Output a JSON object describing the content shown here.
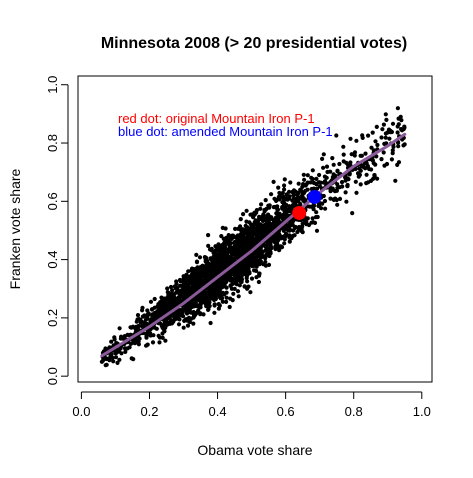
{
  "chart_data": {
    "type": "scatter",
    "title": "Minnesota 2008 (> 20 presidential votes)",
    "xlabel": "Obama vote share",
    "ylabel": "Franken vote share",
    "xlim": [
      -0.01,
      1.03
    ],
    "ylim": [
      -0.02,
      1.03
    ],
    "xticks": [
      "0.0",
      "0.2",
      "0.4",
      "0.6",
      "0.8",
      "1.0"
    ],
    "yticks": [
      "0.0",
      "0.2",
      "0.4",
      "0.6",
      "0.8",
      "1.0"
    ],
    "xtick_values": [
      0,
      0.2,
      0.4,
      0.6,
      0.8,
      1.0
    ],
    "ytick_values": [
      0,
      0.2,
      0.4,
      0.6,
      0.8,
      1.0
    ],
    "grid": false,
    "legend": "top-left",
    "annotations": [
      {
        "text": "red dot: original Mountain Iron P-1",
        "color": "#ff0000"
      },
      {
        "text": "blue dot: amended Mountain Iron P-1",
        "color": "#0000ff"
      }
    ],
    "series": [
      {
        "type": "scatter",
        "color": "#000000",
        "points_description": "approx. 4000 precincts along y ≈ x band",
        "band": {
          "x_range": [
            0.06,
            0.95
          ],
          "center": [
            [
              0.06,
              0.06
            ],
            [
              0.2,
              0.18
            ],
            [
              0.35,
              0.31
            ],
            [
              0.5,
              0.44
            ],
            [
              0.65,
              0.59
            ],
            [
              0.8,
              0.71
            ],
            [
              0.95,
              0.85
            ]
          ],
          "spread_sd": 0.035
        }
      },
      {
        "type": "line",
        "name": "smooth",
        "color": "#8b5a9b",
        "values": [
          [
            0.06,
            0.07
          ],
          [
            0.2,
            0.17
          ],
          [
            0.3,
            0.25
          ],
          [
            0.4,
            0.34
          ],
          [
            0.5,
            0.43
          ],
          [
            0.6,
            0.53
          ],
          [
            0.7,
            0.63
          ],
          [
            0.8,
            0.72
          ],
          [
            0.9,
            0.79
          ],
          [
            0.95,
            0.83
          ]
        ]
      },
      {
        "type": "point",
        "name": "original Mountain Iron P-1",
        "color": "#ff0000",
        "x": 0.64,
        "y": 0.56
      },
      {
        "type": "point",
        "name": "amended Mountain Iron P-1",
        "color": "#0000ff",
        "x": 0.685,
        "y": 0.615
      }
    ]
  }
}
